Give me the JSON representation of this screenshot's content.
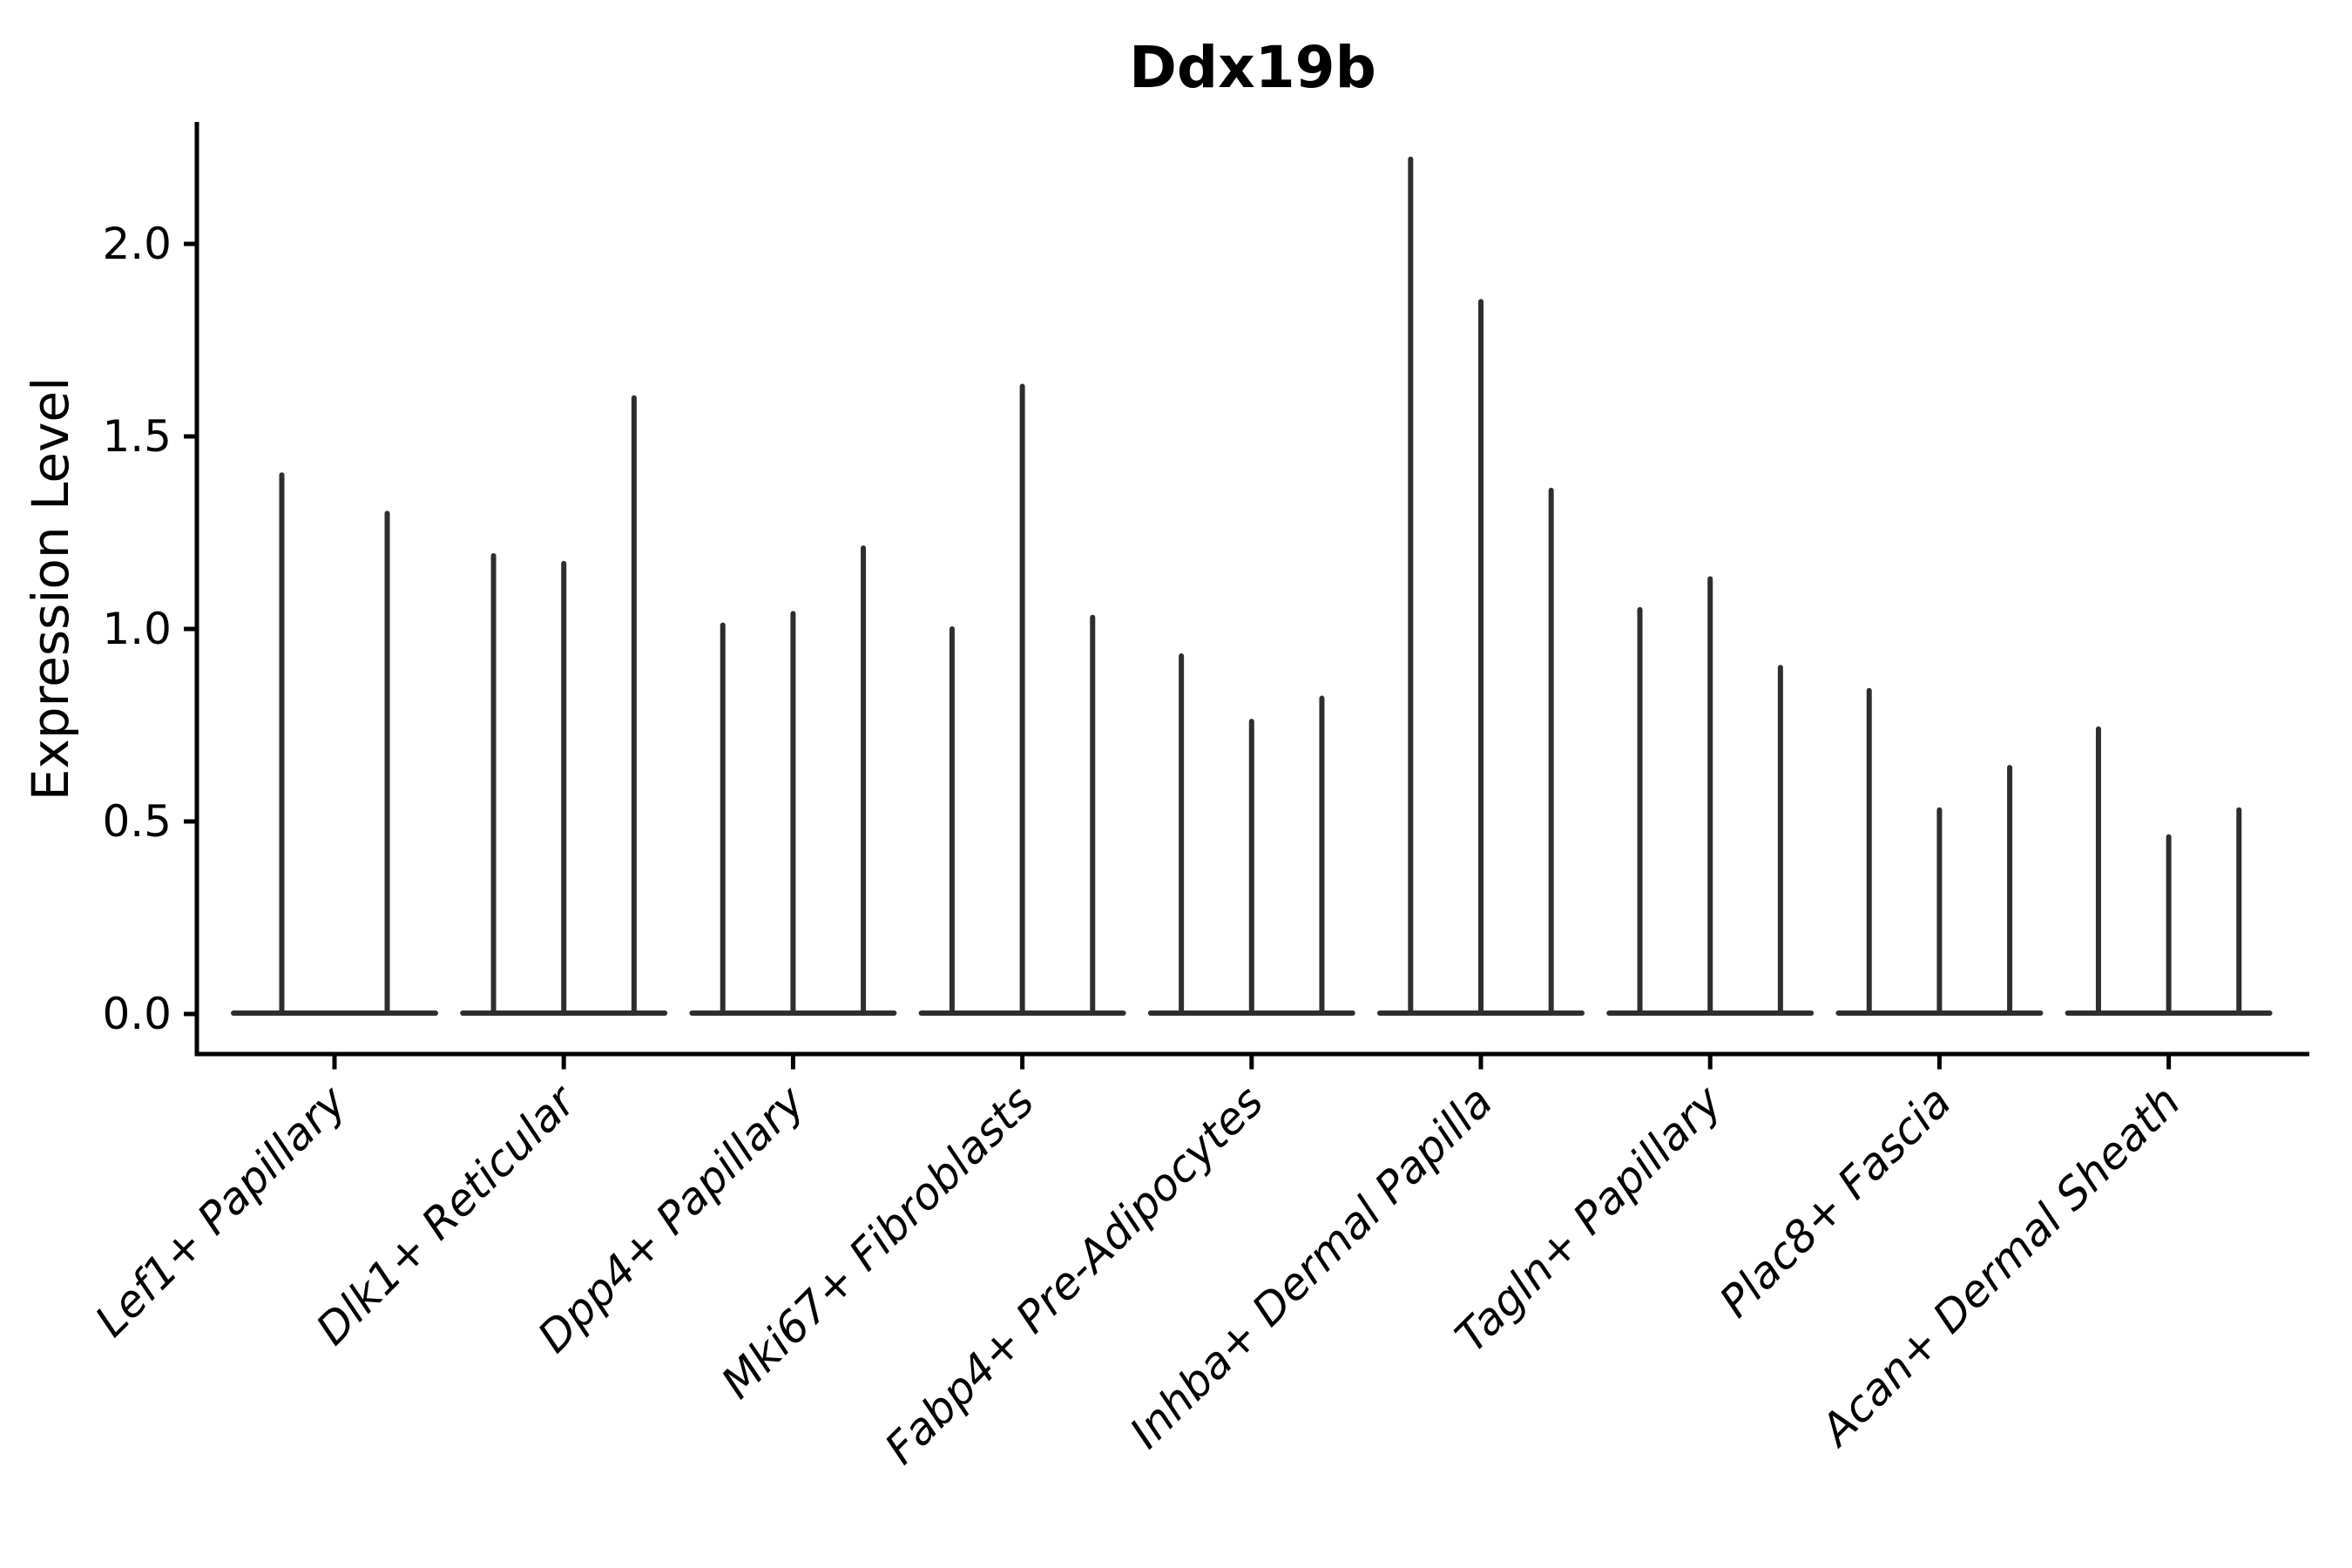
{
  "chart_data": {
    "type": "violin",
    "title": "Ddx19b",
    "xlabel": "",
    "ylabel": "Expression Level",
    "ylim": [
      0,
      2.31
    ],
    "yticks": [
      "0.0",
      "0.5",
      "1.0",
      "1.5",
      "2.0"
    ],
    "grid": false,
    "legend": "none",
    "categories": [
      "Lef1+ Papillary",
      "Dlk1+ Reticular",
      "Dpp4+ Papillary",
      "Mki67+ Fibroblasts",
      "Fabp4+ Pre-Adipocytes",
      "Inhba+ Dermal Papilla",
      "Tagln+ Papillary",
      "Plac8+ Fascia",
      "Acan+ Dermal Sheath"
    ],
    "series": [
      {
        "category": "Lef1+ Papillary",
        "violin_maxima": [
          1.4,
          1.3
        ]
      },
      {
        "category": "Dlk1+ Reticular",
        "violin_maxima": [
          1.19,
          1.17,
          1.6
        ]
      },
      {
        "category": "Dpp4+ Papillary",
        "violin_maxima": [
          1.01,
          1.04,
          1.21
        ]
      },
      {
        "category": "Mki67+ Fibroblasts",
        "violin_maxima": [
          1.0,
          1.63,
          1.03
        ]
      },
      {
        "category": "Fabp4+ Pre-Adipocytes",
        "violin_maxima": [
          0.93,
          0.76,
          0.82
        ]
      },
      {
        "category": "Inhba+ Dermal Papilla",
        "violin_maxima": [
          2.22,
          1.85,
          1.36
        ]
      },
      {
        "category": "Tagln+ Papillary",
        "violin_maxima": [
          1.05,
          1.13,
          0.9
        ]
      },
      {
        "category": "Plac8+ Fascia",
        "violin_maxima": [
          0.84,
          0.53,
          0.64
        ]
      },
      {
        "category": "Acan+ Dermal Sheath",
        "violin_maxima": [
          0.74,
          0.46,
          0.53
        ]
      }
    ],
    "violin_min": 0,
    "colors": {
      "violin_ink": "#2e2e2e",
      "axis_spine": "#000000",
      "text": "#000000",
      "background": "#ffffff"
    }
  }
}
